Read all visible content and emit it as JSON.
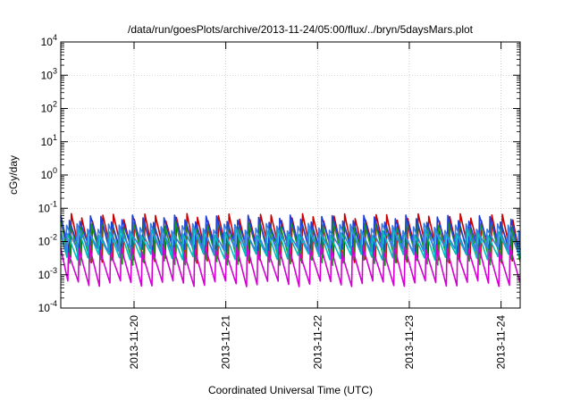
{
  "chart_data": {
    "type": "line",
    "title": "/data/run/goesPlots/archive/2013-11-24/05:00/flux/../bryn/5daysMars.plot",
    "xlabel": "Coordinated Universal Time (UTC)",
    "ylabel": "cGy/day",
    "y_scale": "log",
    "ylim": [
      0.0001,
      10000
    ],
    "y_ticks": [
      {
        "base": "10",
        "exp": "-4"
      },
      {
        "base": "10",
        "exp": "-3"
      },
      {
        "base": "10",
        "exp": "-2"
      },
      {
        "base": "10",
        "exp": "-1"
      },
      {
        "base": "10",
        "exp": "0"
      },
      {
        "base": "10",
        "exp": "1"
      },
      {
        "base": "10",
        "exp": "2"
      },
      {
        "base": "10",
        "exp": "3"
      },
      {
        "base": "10",
        "exp": "4"
      }
    ],
    "xlim": [
      "2013-11-19 04:50",
      "2013-11-24 05:00"
    ],
    "x_ticks": [
      "2013-11-20",
      "2013-11-21",
      "2013-11-22",
      "2013-11-23",
      "2013-11-24"
    ],
    "grid": true,
    "legend": "none",
    "sawtooth": {
      "period_hours": 2.75,
      "decay_hours": 2.6,
      "note_bands": "values per series: peak / trough in cGy/day"
    },
    "series": [
      {
        "color": "#cc0000",
        "peak": 0.055,
        "trough": 0.0028
      },
      {
        "color": "#1a9a1a",
        "peak": 0.035,
        "trough": 0.0024
      },
      {
        "color": "#1f3fd8",
        "peak": 0.05,
        "trough": 0.005
      },
      {
        "color": "#d400d4",
        "peak": 0.006,
        "trough": 0.00055
      },
      {
        "color": "#00bcbc",
        "peak": 0.02,
        "trough": 0.0035
      },
      {
        "color": "#3a7fe0",
        "peak": 0.028,
        "trough": 0.006
      }
    ]
  }
}
